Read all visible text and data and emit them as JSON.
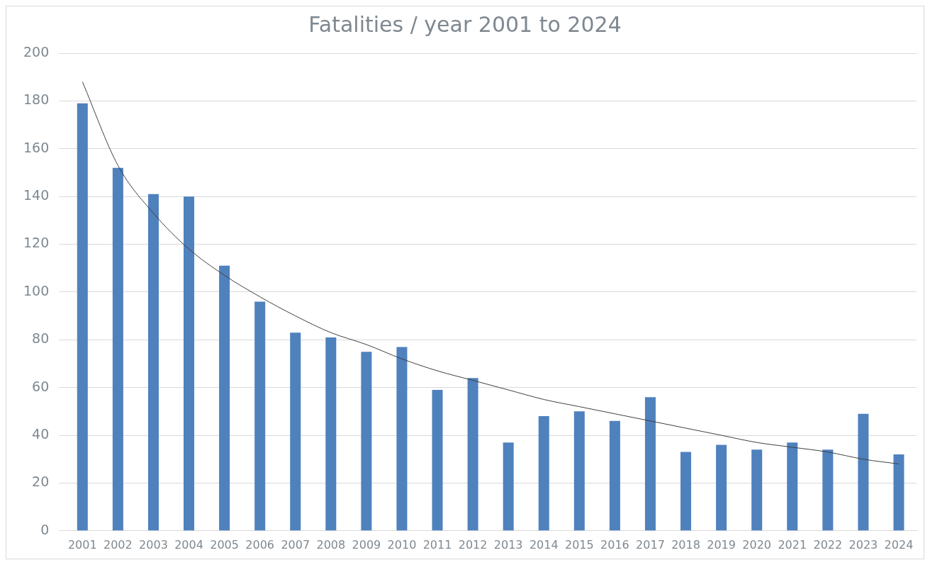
{
  "chart_data": {
    "type": "bar",
    "title": "Fatalities / year 2001 to 2024",
    "categories": [
      "2001",
      "2002",
      "2003",
      "2004",
      "2005",
      "2006",
      "2007",
      "2008",
      "2009",
      "2010",
      "2011",
      "2012",
      "2013",
      "2014",
      "2015",
      "2016",
      "2017",
      "2018",
      "2019",
      "2020",
      "2021",
      "2022",
      "2023",
      "2024"
    ],
    "series": [
      {
        "color": "#4f81bd",
        "values": [
          179,
          152,
          141,
          140,
          111,
          96,
          83,
          81,
          75,
          77,
          59,
          64,
          37,
          48,
          50,
          46,
          56,
          33,
          36,
          34,
          37,
          34,
          49,
          32
        ]
      },
      {
        "type": "line",
        "color": "#404040",
        "marker": "none",
        "values": [
          188,
          153,
          133,
          118,
          107,
          98,
          90,
          83,
          78,
          72,
          67,
          63,
          59,
          55,
          52,
          49,
          46,
          43,
          40,
          37,
          35,
          33,
          30,
          28
        ]
      }
    ],
    "ylim": [
      0,
      200
    ],
    "yticks": [
      0,
      20,
      40,
      60,
      80,
      100,
      120,
      140,
      160,
      180,
      200
    ],
    "grid": "y",
    "legend": false
  }
}
